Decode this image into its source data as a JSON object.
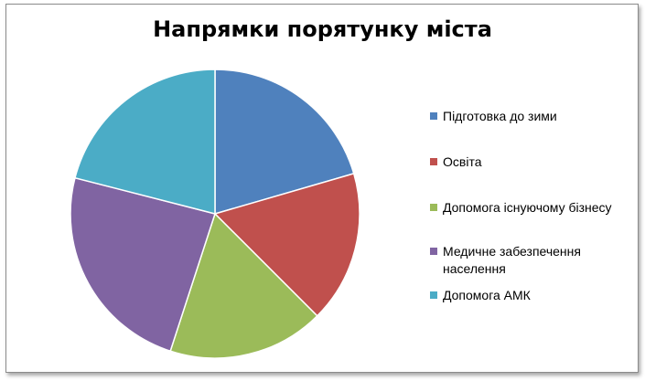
{
  "chart_data": {
    "type": "pie",
    "title": "Напрямки порятунку міста",
    "categories": [
      "Підготовка до зими",
      "Освіта",
      "Допомога існуючому бізнесу",
      "Медичне забезпечення населення",
      "Допомога АМК"
    ],
    "values": [
      20.5,
      17,
      17.5,
      24,
      21
    ],
    "colors": [
      "#4f81bd",
      "#c0504d",
      "#9bbb59",
      "#8064a2",
      "#4bacc6"
    ],
    "legend": "right"
  }
}
